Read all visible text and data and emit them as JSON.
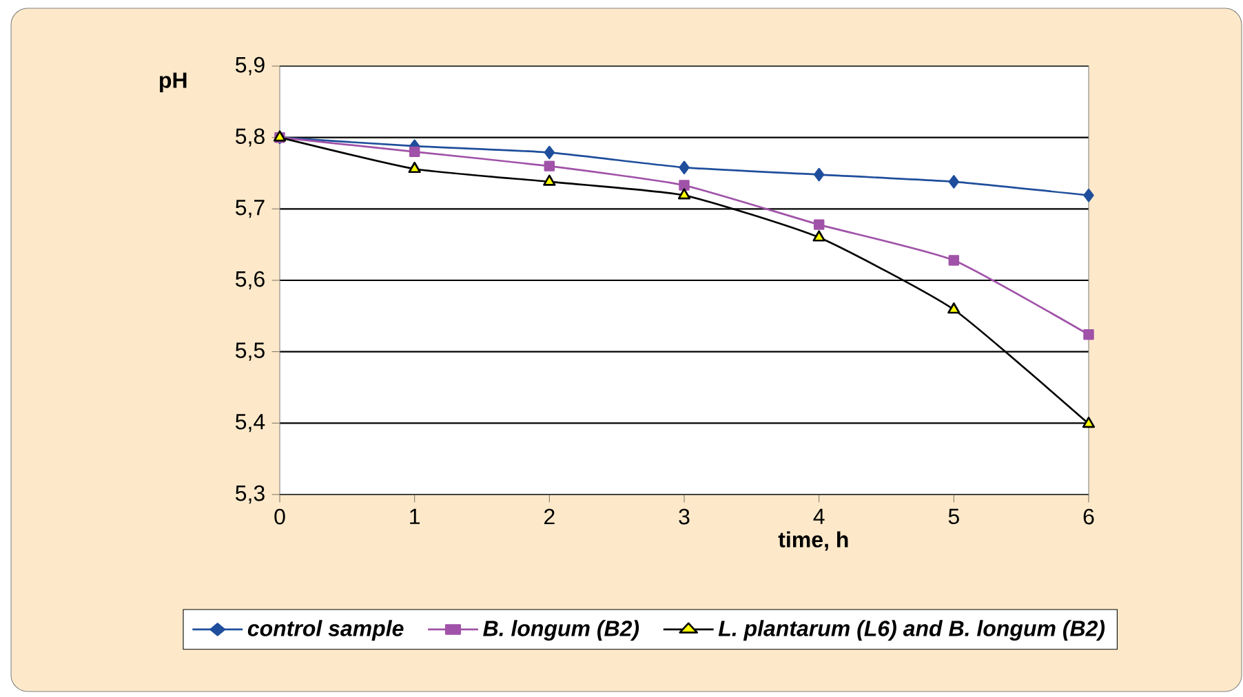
{
  "chart_data": {
    "type": "line",
    "xlabel": "time, h",
    "ylabel": "pH",
    "x": [
      0,
      1,
      2,
      3,
      4,
      5,
      6
    ],
    "series": [
      {
        "name": "*control sample*",
        "color": "#1f4e9c",
        "marker": "diamond",
        "values": [
          5.8,
          5.788,
          5.779,
          5.758,
          5.748,
          5.738,
          5.719
        ]
      },
      {
        "name": "*B. longum (B2)*",
        "color": "#a052a8",
        "marker": "square",
        "values": [
          5.8,
          5.78,
          5.76,
          5.733,
          5.678,
          5.628,
          5.524
        ]
      },
      {
        "name": "*L. plantarum (L6) and B. longum (B2)*",
        "color": "#000000",
        "marker": "triangle",
        "colors": [
          "#ffff00",
          "#ffff00",
          "#ffff00",
          "#ffff00",
          "#ffff00",
          "#ffff00",
          "#ffff00"
        ],
        "values": [
          5.8,
          5.756,
          5.738,
          5.719,
          5.66,
          5.559,
          5.399
        ]
      }
    ],
    "xlim": [
      0,
      6
    ],
    "xticks": [
      0,
      1,
      2,
      3,
      4,
      5,
      6
    ],
    "ylim": [
      5.3,
      5.9
    ],
    "yticks": [
      {
        "value": 5.3,
        "label": "5,3"
      },
      {
        "value": 5.4,
        "label": "5,4"
      },
      {
        "value": 5.5,
        "label": "5,5"
      },
      {
        "value": 5.6,
        "label": "5,6"
      },
      {
        "value": 5.7,
        "label": "5,7"
      },
      {
        "value": 5.8,
        "label": "5,8"
      },
      {
        "value": 5.9,
        "label": "5,9"
      }
    ],
    "grid": "y",
    "legend": "bottom",
    "line_style": "solid"
  }
}
